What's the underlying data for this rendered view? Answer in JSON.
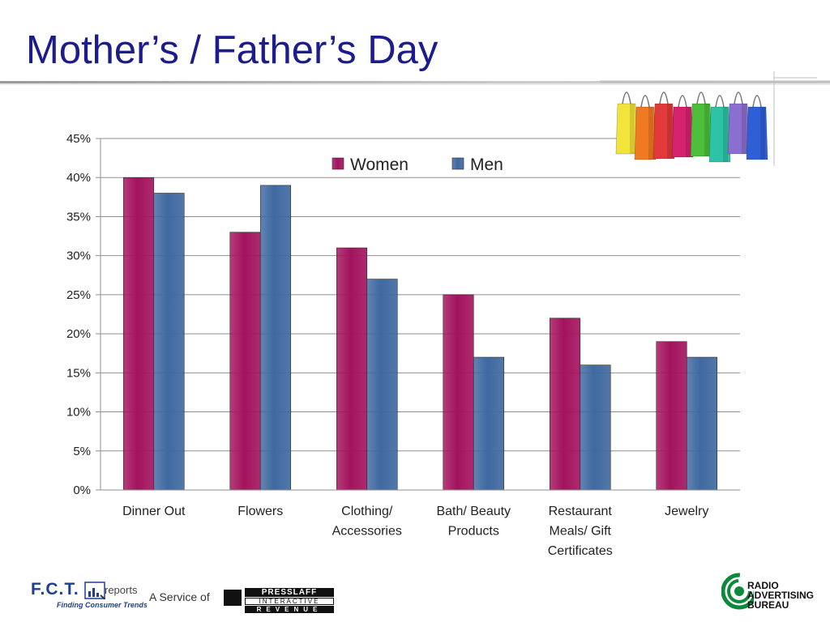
{
  "slide": {
    "title": "Mother’s / Father’s Day"
  },
  "chart_data": {
    "type": "bar",
    "categories": [
      "Dinner Out",
      "Flowers",
      "Clothing/ Accessories",
      "Bath/ Beauty Products",
      "Restaurant Meals/ Gift Certificates",
      "Jewelry"
    ],
    "category_lines": [
      [
        "Dinner Out"
      ],
      [
        "Flowers"
      ],
      [
        "Clothing/",
        "Accessories"
      ],
      [
        "Bath/ Beauty",
        "Products"
      ],
      [
        "Restaurant",
        "Meals/ Gift",
        "Certificates"
      ],
      [
        "Jewelry"
      ]
    ],
    "series": [
      {
        "name": "Women",
        "values": [
          40,
          33,
          31,
          25,
          22,
          19
        ],
        "color": "#a3135e"
      },
      {
        "name": "Men",
        "values": [
          38,
          39,
          27,
          17,
          16,
          17
        ],
        "color": "#3f69a0"
      }
    ],
    "ylim": [
      0,
      45
    ],
    "yticks": [
      0,
      5,
      10,
      15,
      20,
      25,
      30,
      35,
      40,
      45
    ],
    "tick_format": "percent",
    "grid": true,
    "legend_position": "top-right",
    "title": "",
    "xlabel": "",
    "ylabel": ""
  },
  "decoration": {
    "shopping_bags_colors": [
      "#f2e43a",
      "#f07a22",
      "#e23a3a",
      "#d6226e",
      "#4cbe3a",
      "#2cc3a6",
      "#8b6fd0",
      "#2e5fd6"
    ]
  },
  "footer": {
    "fct_logo": "F.C.T.",
    "fct_reports": "reports",
    "fct_tagline": "Finding Consumer Trends",
    "service_text": "A Service of",
    "presslaff_line1": "PRESSLAFF",
    "presslaff_line2": "INTERACTIVE",
    "presslaff_line3": "REVENUE",
    "rab_line1": "RADIO",
    "rab_line2": "ADVERTISING",
    "rab_line3": "BUREAU"
  }
}
